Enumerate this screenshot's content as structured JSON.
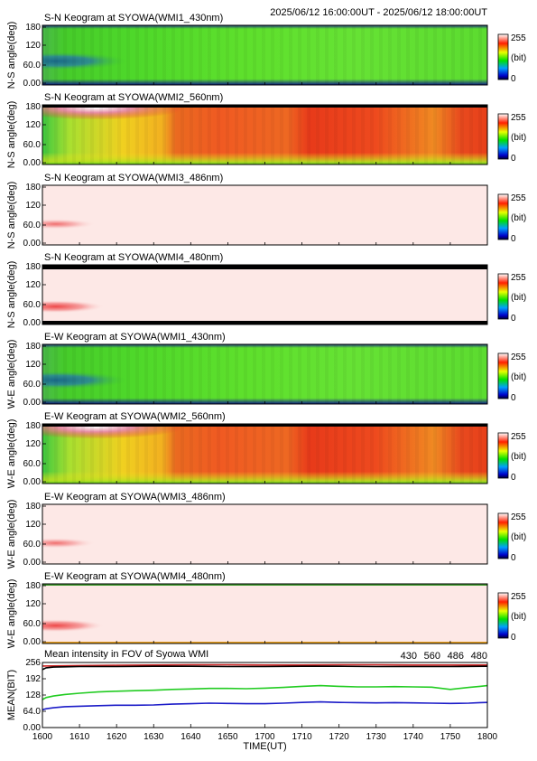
{
  "header": {
    "time_range": "2025/06/12 16:00:00UT - 2025/06/12 18:00:00UT"
  },
  "colorbar": {
    "max_label": "255",
    "unit_label": "(bit)",
    "min_label": "0"
  },
  "panels": [
    {
      "title": "S-N Keogram at SYOWA(WMI1_430nm)",
      "ylabel": "N-S angle(deg)",
      "ticks": [
        "180",
        "120",
        "60.0",
        "0.00"
      ],
      "style": "430"
    },
    {
      "title": "S-N Keogram at SYOWA(WMI2_560nm)",
      "ylabel": "N-S angle(deg)",
      "ticks": [
        "180",
        "120",
        "60.0",
        "0.00"
      ],
      "style": "560"
    },
    {
      "title": "S-N Keogram at SYOWA(WMI3_486nm)",
      "ylabel": "N-S angle(deg)",
      "ticks": [
        "180",
        "120",
        "60.0",
        "0.00"
      ],
      "style": "486"
    },
    {
      "title": "S-N Keogram at SYOWA(WMI4_480nm)",
      "ylabel": "N-S angle(deg)",
      "ticks": [
        "180",
        "120",
        "60.0",
        "0.00"
      ],
      "style": "480"
    },
    {
      "title": "E-W Keogram at SYOWA(WMI1_430nm)",
      "ylabel": "W-E angle(deg)",
      "ticks": [
        "180",
        "120",
        "60.0",
        "0.00"
      ],
      "style": "430"
    },
    {
      "title": "E-W Keogram at SYOWA(WMI2_560nm)",
      "ylabel": "W-E angle(deg)",
      "ticks": [
        "180",
        "120",
        "60.0",
        "0.00"
      ],
      "style": "560"
    },
    {
      "title": "E-W Keogram at SYOWA(WMI3_486nm)",
      "ylabel": "W-E angle(deg)",
      "ticks": [
        "180",
        "120",
        "60.0",
        "0.00"
      ],
      "style": "486"
    },
    {
      "title": "E-W Keogram at SYOWA(WMI4_480nm)",
      "ylabel": "W-E angle(deg)",
      "ticks": [
        "180",
        "120",
        "60.0",
        "0.00"
      ],
      "style": "480"
    }
  ],
  "chart_data": {
    "type": "line",
    "title": "Mean intensity in FOV of Syowa WMI",
    "xlabel": "TIME(UT)",
    "ylabel": "MEAN(BIT)",
    "x_ticks": [
      "1600",
      "1610",
      "1620",
      "1630",
      "1640",
      "1650",
      "1700",
      "1710",
      "1720",
      "1730",
      "1740",
      "1750",
      "1800"
    ],
    "y_ticks": [
      "256",
      "192",
      "128",
      "64.0",
      "0.00"
    ],
    "ylim": [
      0,
      256
    ],
    "xlim_minutes": [
      0,
      120
    ],
    "series": [
      {
        "name": "430",
        "color": "#1c1cc8",
        "x": [
          0,
          1,
          3,
          6,
          10,
          15,
          20,
          25,
          30,
          35,
          40,
          45,
          50,
          55,
          60,
          65,
          70,
          75,
          80,
          85,
          90,
          95,
          100,
          105,
          110,
          115,
          118,
          120
        ],
        "values": [
          70,
          74,
          78,
          82,
          84,
          86,
          88,
          88,
          89,
          92,
          94,
          96,
          95,
          94,
          94,
          96,
          99,
          101,
          99,
          98,
          97,
          98,
          97,
          96,
          95,
          96,
          98,
          99
        ]
      },
      {
        "name": "560",
        "color": "#22cc22",
        "x": [
          0,
          1,
          3,
          6,
          10,
          15,
          20,
          25,
          30,
          35,
          40,
          45,
          50,
          55,
          60,
          65,
          70,
          75,
          80,
          85,
          90,
          95,
          100,
          105,
          110,
          115,
          118,
          120
        ],
        "values": [
          110,
          118,
          124,
          130,
          135,
          140,
          143,
          145,
          147,
          150,
          152,
          154,
          154,
          153,
          155,
          158,
          162,
          165,
          162,
          160,
          160,
          161,
          160,
          159,
          150,
          158,
          162,
          165
        ]
      },
      {
        "name": "486",
        "color": "#cc2222",
        "x": [
          0,
          10,
          20,
          30,
          40,
          50,
          60,
          70,
          80,
          90,
          100,
          110,
          120
        ],
        "values": [
          242,
          244,
          245,
          246,
          247,
          247,
          246,
          246,
          247,
          247,
          246,
          246,
          246
        ]
      },
      {
        "name": "480",
        "color": "#000000",
        "x": [
          0,
          1,
          3,
          6,
          10,
          15,
          20,
          30,
          40,
          50,
          60,
          70,
          80,
          90,
          100,
          110,
          120
        ],
        "values": [
          228,
          235,
          238,
          239,
          240,
          240,
          240,
          241,
          241,
          240,
          240,
          241,
          241,
          240,
          240,
          240,
          241
        ]
      }
    ]
  }
}
